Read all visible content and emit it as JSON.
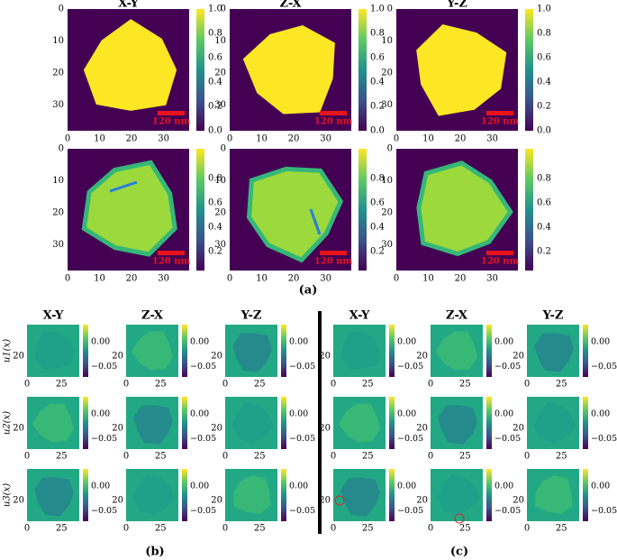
{
  "panel_a": {
    "titles": [
      "X-Y",
      "Z-X",
      "Y-Z"
    ],
    "y_ticks": [
      "0",
      "10",
      "20",
      "30"
    ],
    "x_ticks": [
      "0",
      "10",
      "20",
      "30"
    ],
    "colorbar_ticks_top": [
      "0.0",
      "0.2",
      "0.4",
      "0.6",
      "0.8",
      "1.0"
    ],
    "colorbar_ticks_bottom": [
      "0.2",
      "0.4",
      "0.6",
      "0.8"
    ],
    "scale_bar": "120 nm",
    "caption": "(a)"
  },
  "panel_b": {
    "titles": [
      "X-Y",
      "Z-X",
      "Y-Z"
    ],
    "row_labels": [
      "u1(x)",
      "u2(x)",
      "u3(x)"
    ],
    "y_ticks": [
      "20"
    ],
    "x_ticks": [
      "0",
      "25"
    ],
    "colorbar_ticks": [
      "0.00",
      "−0.05"
    ],
    "caption": "(b)"
  },
  "panel_c": {
    "titles": [
      "X-Y",
      "Z-X",
      "Y-Z"
    ],
    "y_ticks": [
      "20"
    ],
    "x_ticks": [
      "0",
      "25"
    ],
    "colorbar_ticks": [
      "0.00",
      "−0.05"
    ],
    "caption": "(c)"
  }
}
